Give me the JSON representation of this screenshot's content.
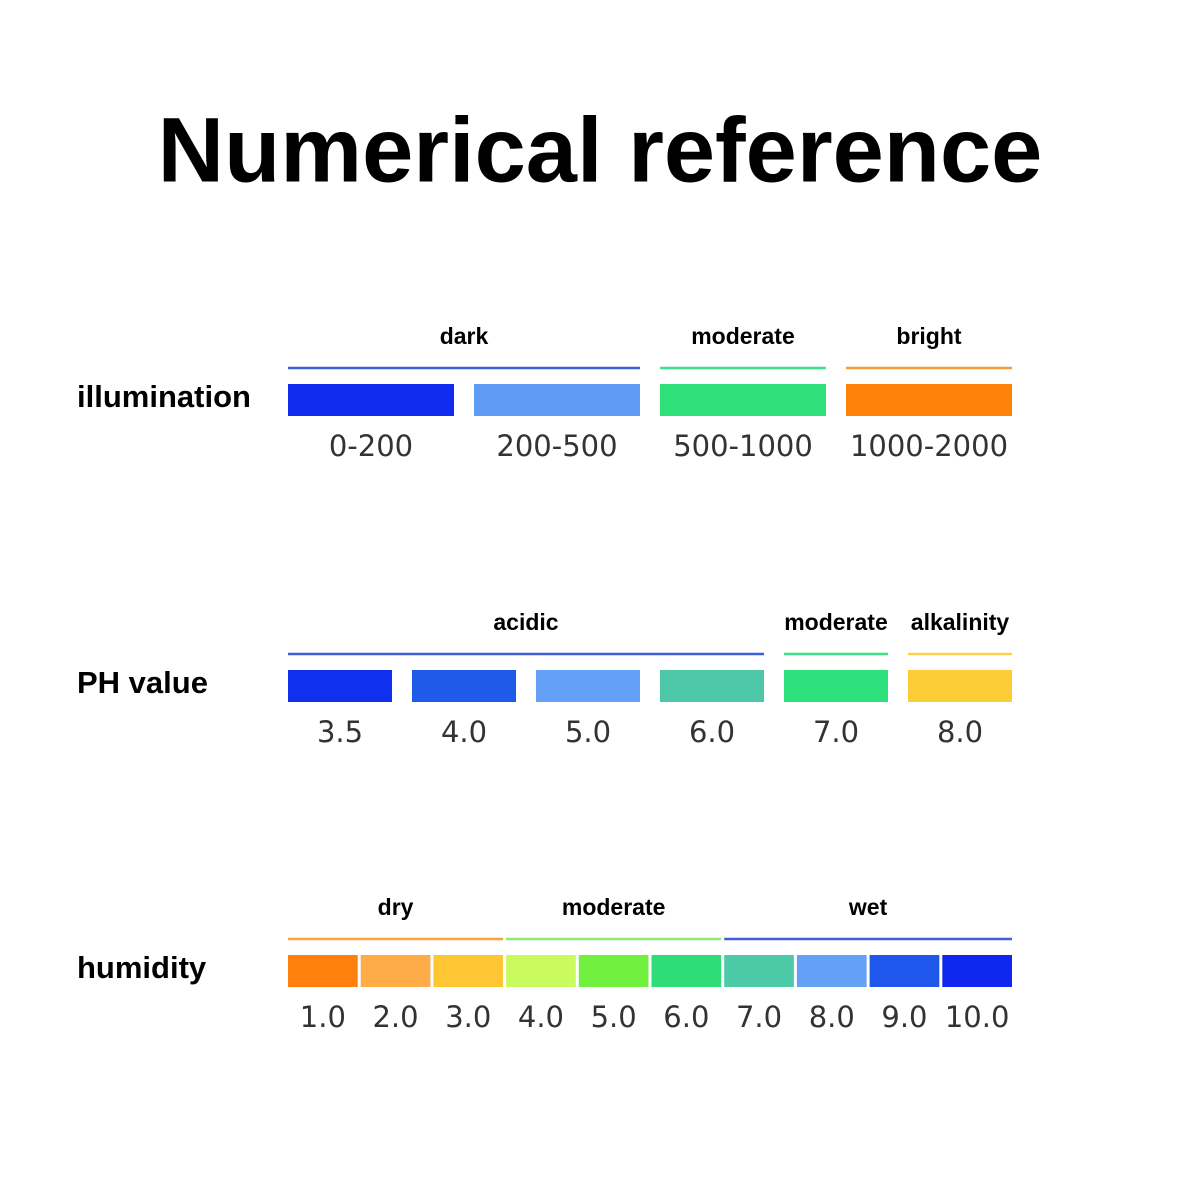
{
  "title": "Numerical reference",
  "sections": [
    {
      "label": "illumination",
      "groups": [
        {
          "label": "dark",
          "color": "#3f5fd6",
          "swatches": [
            {
              "color": "#0f2cf0",
              "label": "0-200"
            },
            {
              "color": "#5f9af5",
              "label": "200-500"
            }
          ]
        },
        {
          "label": "moderate",
          "color": "#3ee08a",
          "swatches": [
            {
              "color": "#2fe07a",
              "label": "500-1000"
            }
          ]
        },
        {
          "label": "bright",
          "color": "#f79a3a",
          "swatches": [
            {
              "color": "#ff8208",
              "label": "1000-2000"
            }
          ]
        }
      ]
    },
    {
      "label": "PH value",
      "groups": [
        {
          "label": "acidic",
          "color": "#3f5fd6",
          "swatches": [
            {
              "color": "#1030f0",
              "label": "3.5"
            },
            {
              "color": "#1f5ae8",
              "label": "4.0"
            },
            {
              "color": "#64a0f5",
              "label": "5.0"
            },
            {
              "color": "#4cc8a8",
              "label": "6.0"
            }
          ]
        },
        {
          "label": "moderate",
          "color": "#3ee08a",
          "swatches": [
            {
              "color": "#2ee07c",
              "label": "7.0"
            }
          ]
        },
        {
          "label": "alkalinity",
          "color": "#fbd24a",
          "swatches": [
            {
              "color": "#fdcd38",
              "label": "8.0"
            }
          ]
        }
      ]
    },
    {
      "label": "humidity",
      "groups": [
        {
          "label": "dry",
          "color": "#f7a53a",
          "swatches": [
            {
              "color": "#ff800c",
              "label": "1.0"
            },
            {
              "color": "#feac48",
              "label": "2.0"
            },
            {
              "color": "#fec632",
              "label": "3.0"
            }
          ]
        },
        {
          "label": "moderate",
          "color": "#8fe87a",
          "swatches": [
            {
              "color": "#c9fa5e",
              "label": "4.0"
            },
            {
              "color": "#72f040",
              "label": "5.0"
            },
            {
              "color": "#2fdd78",
              "label": "6.0"
            }
          ]
        },
        {
          "label": "wet",
          "color": "#3f5fd6",
          "swatches": [
            {
              "color": "#4ccaa8",
              "label": "7.0"
            },
            {
              "color": "#63a0f6",
              "label": "8.0"
            },
            {
              "color": "#1f56eb",
              "label": "9.0"
            },
            {
              "color": "#0f28f0",
              "label": "10.0"
            }
          ]
        }
      ]
    }
  ]
}
